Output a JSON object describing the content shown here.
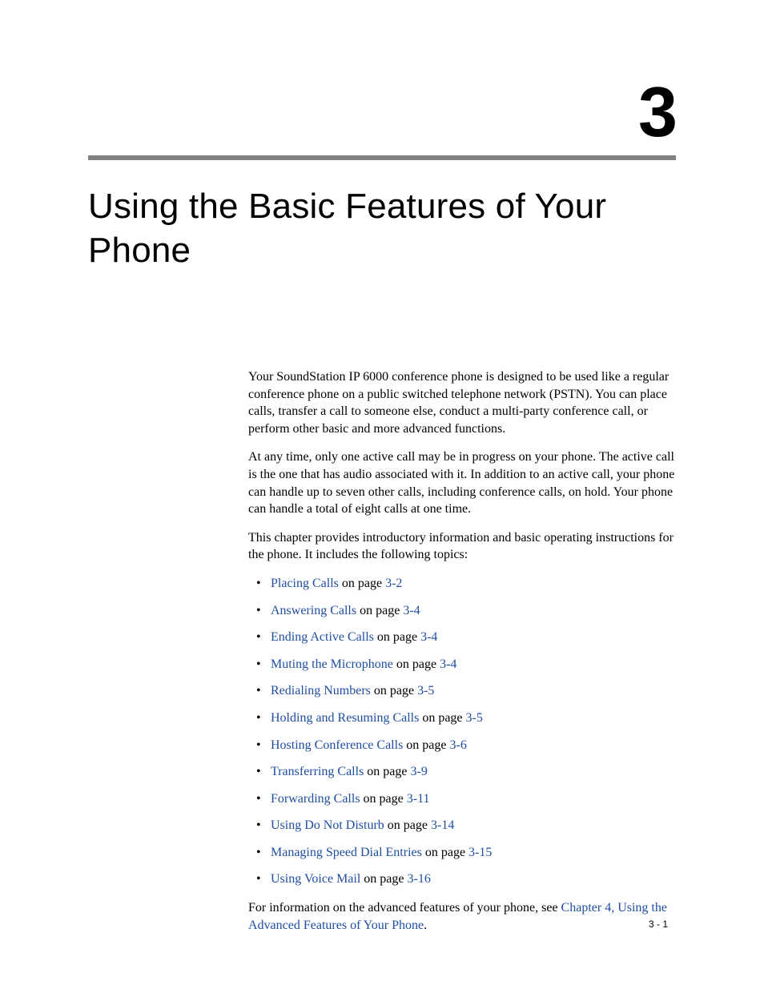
{
  "chapter": {
    "number": "3",
    "title": "Using the Basic Features of Your Phone"
  },
  "intro": {
    "p1": "Your SoundStation IP 6000 conference phone is designed to be used like a regular conference phone on a public switched telephone network (PSTN). You can place calls, transfer a call to someone else, conduct a multi-party conference call, or perform other basic and more advanced functions.",
    "p2": "At any time, only one active call may be in progress on your phone. The active call is the one that has audio associated with it. In addition to an active call, your phone can handle up to seven other calls, including conference calls, on hold. Your phone can handle a total of eight calls at one time.",
    "p3": "This chapter provides introductory information and basic operating instructions for the phone. It includes the following topics:"
  },
  "topics": [
    {
      "link": "Placing Calls",
      "middle": " on page ",
      "page": "3-2"
    },
    {
      "link": "Answering Calls",
      "middle": " on page ",
      "page": "3-4"
    },
    {
      "link": "Ending Active Calls",
      "middle": " on page ",
      "page": "3-4"
    },
    {
      "link": "Muting the Microphone",
      "middle": " on page ",
      "page": "3-4"
    },
    {
      "link": "Redialing Numbers",
      "middle": " on page ",
      "page": "3-5"
    },
    {
      "link": "Holding and Resuming Calls",
      "middle": " on page ",
      "page": "3-5"
    },
    {
      "link": "Hosting Conference Calls",
      "middle": " on page ",
      "page": "3-6"
    },
    {
      "link": "Transferring Calls",
      "middle": " on page ",
      "page": "3-9"
    },
    {
      "link": "Forwarding Calls",
      "middle": " on page ",
      "page": "3-11"
    },
    {
      "link": "Using Do Not Disturb",
      "middle": " on page ",
      "page": "3-14"
    },
    {
      "link": "Managing Speed Dial Entries",
      "middle": " on page ",
      "page": "3-15"
    },
    {
      "link": "Using Voice Mail",
      "middle": " on page ",
      "page": "3-16"
    }
  ],
  "outro": {
    "prefix": "For information on the advanced features of your phone, see ",
    "link": "Chapter 4, Using the Advanced Features of Your Phone",
    "suffix": "."
  },
  "footer": {
    "page": "3 - 1"
  },
  "colors": {
    "link": "#1f4ea1",
    "rule": "#808080",
    "text": "#000000",
    "background": "#ffffff"
  },
  "typography": {
    "chapter_number_fontsize": 88,
    "chapter_title_fontsize": 44,
    "body_fontsize": 16,
    "footer_fontsize": 12
  }
}
